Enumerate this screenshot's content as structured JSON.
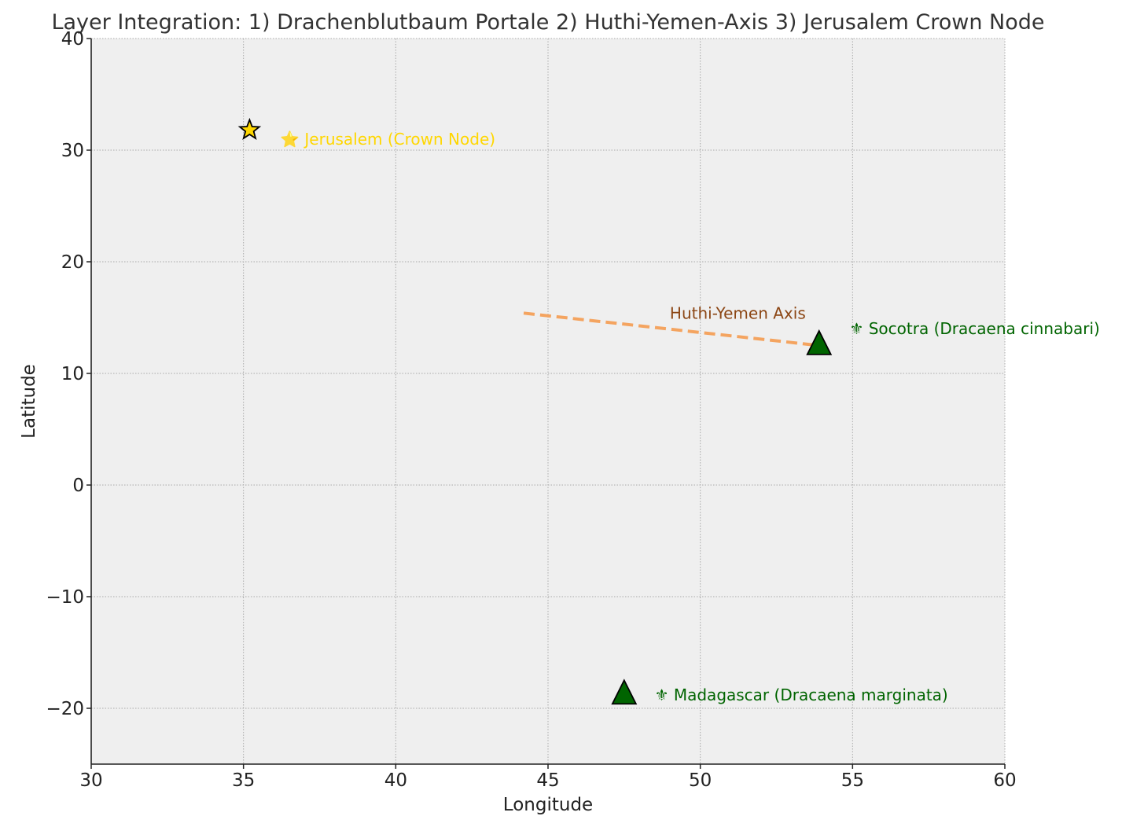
{
  "chart_data": {
    "type": "scatter",
    "title": "Layer Integration: 1) Drachenblutbaum Portale 2) Huthi-Yemen-Axis 3) Jerusalem Crown Node",
    "xlabel": "Longitude",
    "ylabel": "Latitude",
    "xlim": [
      30,
      60
    ],
    "ylim": [
      -25,
      40
    ],
    "xticks": [
      30,
      35,
      40,
      45,
      50,
      55,
      60
    ],
    "yticks": [
      -20,
      -10,
      0,
      10,
      20,
      30,
      40
    ],
    "grid": true,
    "background": "#efefef",
    "points": [
      {
        "name": "Jerusalem",
        "x": 35.2,
        "y": 31.8,
        "marker": "star",
        "color": "#FFD700",
        "label": "⭐ Jerusalem (Crown Node)",
        "label_x": 36.2,
        "label_y": 31.0,
        "label_color": "#FFD700"
      },
      {
        "name": "Socotra",
        "x": 53.9,
        "y": 12.5,
        "marker": "triangle",
        "color": "#006400",
        "label": "⚜ Socotra (Dracaena cinnabari)",
        "label_x": 54.9,
        "label_y": 14.0,
        "label_color": "#006400"
      },
      {
        "name": "Madagascar",
        "x": 47.5,
        "y": -18.8,
        "marker": "triangle",
        "color": "#006400",
        "label": "⚜ Madagascar (Dracaena marginata)",
        "label_x": 48.5,
        "label_y": -18.8,
        "label_color": "#006400"
      }
    ],
    "lines": [
      {
        "name": "Huthi-Yemen Axis",
        "x": [
          44.2,
          53.9
        ],
        "y": [
          15.4,
          12.5
        ],
        "style": "dashed",
        "color": "#F4A460"
      }
    ],
    "annotations": [
      {
        "text": "Huthi-Yemen Axis",
        "x": 49.0,
        "y": 15.4,
        "color": "#8B4513"
      }
    ]
  }
}
